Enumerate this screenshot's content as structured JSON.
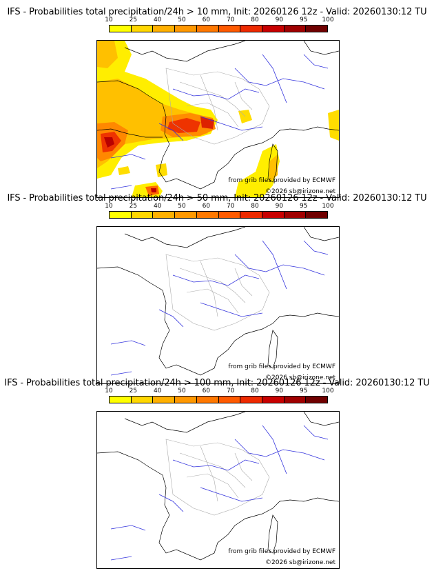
{
  "colorbar": {
    "ticks": [
      "10",
      "25",
      "40",
      "50",
      "60",
      "70",
      "80",
      "90",
      "95",
      "100"
    ],
    "colors": [
      "#ffff00",
      "#ffd700",
      "#ffb000",
      "#ff9800",
      "#ff7800",
      "#ff5a00",
      "#ee2a00",
      "#c80000",
      "#a00000",
      "#700000"
    ]
  },
  "panels": [
    {
      "title": "IFS - Probabilities total precipitation/24h > 10 mm, Init: 20260126 12z - Valid: 20260130:12 TU",
      "credit": "from grib files provided by ECMWF",
      "copyright": "©2026 sb@irizone.net"
    },
    {
      "title": "IFS - Probabilities total precipitation/24h > 50 mm, Init: 20260126 12z - Valid: 20260130:12 TU",
      "credit": "from grib files provided by ECMWF",
      "copyright": "©2026 sb@irizone.net"
    },
    {
      "title": "IFS - Probabilities total precipitation/24h > 100 mm, Init: 20260126 12z - Valid: 20260130:12 TU",
      "credit": "from grib files provided by ECMWF",
      "copyright": "©2026 sb@irizone.net"
    }
  ]
}
